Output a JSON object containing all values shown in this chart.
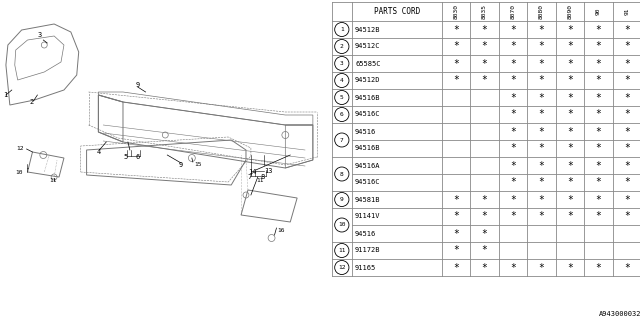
{
  "doc_id": "A943000032",
  "bg_color": "#ffffff",
  "table_bg": "#ffffff",
  "line_color": "#888888",
  "text_color": "#000000",
  "year_labels": [
    "8030",
    "8035",
    "8070",
    "8080",
    "8090",
    "90",
    "91"
  ],
  "rows": [
    {
      "num": "1",
      "part": "94512B",
      "stars": [
        1,
        1,
        1,
        1,
        1,
        1,
        1
      ],
      "merge": false
    },
    {
      "num": "2",
      "part": "94512C",
      "stars": [
        1,
        1,
        1,
        1,
        1,
        1,
        1
      ],
      "merge": false
    },
    {
      "num": "3",
      "part": "65585C",
      "stars": [
        1,
        1,
        1,
        1,
        1,
        1,
        1
      ],
      "merge": false
    },
    {
      "num": "4",
      "part": "94512D",
      "stars": [
        1,
        1,
        1,
        1,
        1,
        1,
        1
      ],
      "merge": false
    },
    {
      "num": "5",
      "part": "94516B",
      "stars": [
        0,
        0,
        1,
        1,
        1,
        1,
        1
      ],
      "merge": false
    },
    {
      "num": "6",
      "part": "94516C",
      "stars": [
        0,
        0,
        1,
        1,
        1,
        1,
        1
      ],
      "merge": false
    },
    {
      "num": "7",
      "part": "94516",
      "stars": [
        0,
        0,
        1,
        1,
        1,
        1,
        1
      ],
      "merge": true,
      "merge_part2": "94516B",
      "stars2": [
        0,
        0,
        1,
        1,
        1,
        1,
        1
      ]
    },
    {
      "num": "8",
      "part": "94516A",
      "stars": [
        0,
        0,
        1,
        1,
        1,
        1,
        1
      ],
      "merge": true,
      "merge_part2": "94516C",
      "stars2": [
        0,
        0,
        1,
        1,
        1,
        1,
        1
      ]
    },
    {
      "num": "9",
      "part": "94581B",
      "stars": [
        1,
        1,
        1,
        1,
        1,
        1,
        1
      ],
      "merge": false
    },
    {
      "num": "10",
      "part": "91141V",
      "stars": [
        1,
        1,
        1,
        1,
        1,
        1,
        1
      ],
      "merge": true,
      "merge_part2": "94516",
      "stars2": [
        1,
        1,
        0,
        0,
        0,
        0,
        0
      ]
    },
    {
      "num": "11",
      "part": "91172B",
      "stars": [
        1,
        1,
        0,
        0,
        0,
        0,
        0
      ],
      "merge": false
    },
    {
      "num": "12",
      "part": "91165",
      "stars": [
        1,
        1,
        1,
        1,
        1,
        1,
        1
      ],
      "merge": false
    }
  ]
}
